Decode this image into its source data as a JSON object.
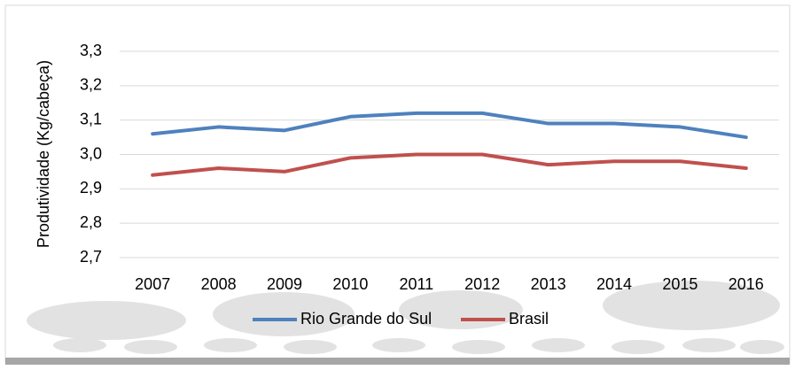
{
  "chart_data": {
    "type": "line",
    "y_label": "Produtividade (Kg/cabeça)",
    "categories": [
      "2007",
      "2008",
      "2009",
      "2010",
      "2011",
      "2012",
      "2013",
      "2014",
      "2015",
      "2016"
    ],
    "series": [
      {
        "name": "Rio Grande do Sul",
        "color": "#4f81bd",
        "values": [
          3.06,
          3.08,
          3.07,
          3.11,
          3.12,
          3.12,
          3.09,
          3.09,
          3.08,
          3.05
        ]
      },
      {
        "name": "Brasil",
        "color": "#c0504d",
        "values": [
          2.94,
          2.96,
          2.95,
          2.99,
          3.0,
          3.0,
          2.97,
          2.98,
          2.98,
          2.96
        ]
      }
    ],
    "ylim": [
      2.7,
      3.3
    ],
    "yticks": [
      {
        "value": 2.7,
        "label": "2,7"
      },
      {
        "value": 2.8,
        "label": "2,8"
      },
      {
        "value": 2.9,
        "label": "2,9"
      },
      {
        "value": 3.0,
        "label": "3,0"
      },
      {
        "value": 3.1,
        "label": "3,1"
      },
      {
        "value": 3.2,
        "label": "3,2"
      },
      {
        "value": 3.3,
        "label": "3,3"
      }
    ],
    "grid": true,
    "legend": "bottom"
  }
}
